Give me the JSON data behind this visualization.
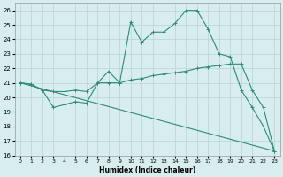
{
  "line1_x": [
    0,
    1,
    2,
    3,
    4,
    5,
    6,
    7,
    8,
    9,
    10,
    11,
    12,
    13,
    14,
    15,
    16,
    17,
    18,
    19,
    20,
    21,
    22,
    23
  ],
  "line1_y": [
    21.0,
    20.9,
    20.5,
    19.3,
    19.5,
    19.7,
    19.6,
    21.0,
    21.8,
    21.0,
    25.2,
    23.8,
    24.5,
    24.5,
    25.1,
    26.0,
    26.0,
    24.7,
    23.0,
    22.8,
    20.5,
    19.3,
    18.0,
    16.3
  ],
  "line2_x": [
    0,
    1,
    2,
    3,
    4,
    5,
    6,
    7,
    8,
    9,
    10,
    11,
    12,
    13,
    14,
    15,
    16,
    17,
    18,
    19,
    20,
    21,
    22,
    23
  ],
  "line2_y": [
    21.0,
    20.9,
    20.5,
    20.4,
    20.4,
    20.5,
    20.4,
    21.0,
    21.0,
    21.0,
    21.2,
    21.3,
    21.5,
    21.6,
    21.7,
    21.8,
    22.0,
    22.1,
    22.2,
    22.3,
    22.3,
    20.5,
    19.3,
    16.3
  ],
  "line3_x": [
    0,
    23
  ],
  "line3_y": [
    21.0,
    16.3
  ],
  "color": "#2e8b75",
  "bg_color": "#d8eeee",
  "grid_color": "#b8d4d4",
  "xlabel": "Humidex (Indice chaleur)",
  "ylim": [
    16,
    26.5
  ],
  "xlim": [
    -0.5,
    23.5
  ],
  "yticks": [
    16,
    17,
    18,
    19,
    20,
    21,
    22,
    23,
    24,
    25,
    26
  ],
  "xticks": [
    0,
    1,
    2,
    3,
    4,
    5,
    6,
    7,
    8,
    9,
    10,
    11,
    12,
    13,
    14,
    15,
    16,
    17,
    18,
    19,
    20,
    21,
    22,
    23
  ]
}
